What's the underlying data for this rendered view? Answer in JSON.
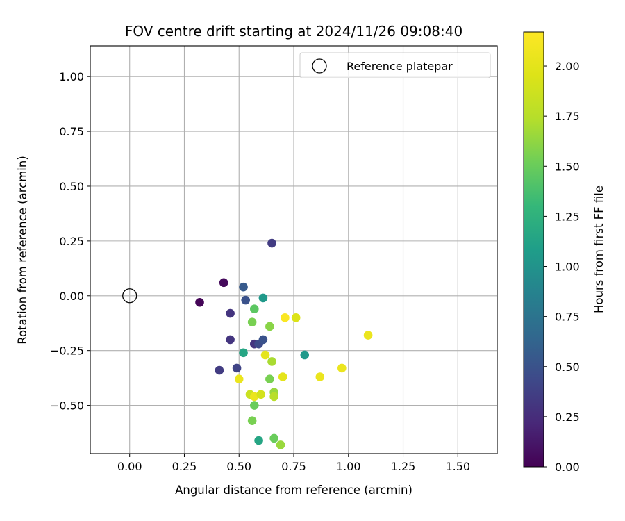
{
  "chart_data": {
    "type": "scatter",
    "title": "FOV centre drift starting at 2024/11/26 09:08:40",
    "xlabel": "Angular distance from reference (arcmin)",
    "ylabel": "Rotation from reference (arcmin)",
    "xlim": [
      -0.18,
      1.68
    ],
    "ylim": [
      -0.72,
      1.14
    ],
    "xticks": [
      0.0,
      0.25,
      0.5,
      0.75,
      1.0,
      1.25,
      1.5
    ],
    "xtick_labels": [
      "0.00",
      "0.25",
      "0.50",
      "0.75",
      "1.00",
      "1.25",
      "1.50"
    ],
    "yticks": [
      -0.5,
      -0.25,
      0.0,
      0.25,
      0.5,
      0.75,
      1.0
    ],
    "ytick_labels": [
      "−0.50",
      "−0.25",
      "0.00",
      "0.25",
      "0.50",
      "0.75",
      "1.00"
    ],
    "grid": true,
    "legend": {
      "position": "top-right",
      "entries": [
        "Reference platepar"
      ]
    },
    "reference_point": {
      "x": 0.0,
      "y": 0.0,
      "label": "Reference platepar"
    },
    "colorbar": {
      "label": "Hours from first FF file",
      "range": [
        0.0,
        2.17
      ],
      "ticks": [
        0.0,
        0.25,
        0.5,
        0.75,
        1.0,
        1.25,
        1.5,
        1.75,
        2.0
      ],
      "tick_labels": [
        "0.00",
        "0.25",
        "0.50",
        "0.75",
        "1.00",
        "1.25",
        "1.50",
        "1.75",
        "2.00"
      ],
      "colormap": "viridis"
    },
    "points": [
      {
        "x": 0.32,
        "y": -0.03,
        "hours": 0.02
      },
      {
        "x": 0.43,
        "y": 0.06,
        "hours": 0.05
      },
      {
        "x": 0.65,
        "y": 0.24,
        "hours": 0.35
      },
      {
        "x": 0.52,
        "y": 0.04,
        "hours": 0.55
      },
      {
        "x": 0.53,
        "y": -0.02,
        "hours": 0.5
      },
      {
        "x": 0.46,
        "y": -0.08,
        "hours": 0.3
      },
      {
        "x": 0.46,
        "y": -0.2,
        "hours": 0.3
      },
      {
        "x": 0.41,
        "y": -0.34,
        "hours": 0.35
      },
      {
        "x": 0.49,
        "y": -0.33,
        "hours": 0.4
      },
      {
        "x": 0.57,
        "y": -0.22,
        "hours": 0.3
      },
      {
        "x": 0.59,
        "y": -0.22,
        "hours": 0.45
      },
      {
        "x": 0.61,
        "y": -0.2,
        "hours": 0.5
      },
      {
        "x": 0.61,
        "y": -0.01,
        "hours": 1.05
      },
      {
        "x": 0.57,
        "y": -0.06,
        "hours": 1.45
      },
      {
        "x": 0.56,
        "y": -0.12,
        "hours": 1.55
      },
      {
        "x": 0.64,
        "y": -0.14,
        "hours": 1.6
      },
      {
        "x": 0.52,
        "y": -0.26,
        "hours": 1.15
      },
      {
        "x": 0.8,
        "y": -0.27,
        "hours": 1.05
      },
      {
        "x": 0.71,
        "y": -0.1,
        "hours": 2.15
      },
      {
        "x": 0.76,
        "y": -0.1,
        "hours": 1.95
      },
      {
        "x": 1.09,
        "y": -0.18,
        "hours": 2.05
      },
      {
        "x": 0.62,
        "y": -0.27,
        "hours": 2.0
      },
      {
        "x": 0.65,
        "y": -0.3,
        "hours": 1.7
      },
      {
        "x": 0.64,
        "y": -0.38,
        "hours": 1.55
      },
      {
        "x": 0.5,
        "y": -0.38,
        "hours": 2.05
      },
      {
        "x": 0.7,
        "y": -0.37,
        "hours": 2.0
      },
      {
        "x": 0.87,
        "y": -0.37,
        "hours": 2.05
      },
      {
        "x": 0.97,
        "y": -0.33,
        "hours": 2.05
      },
      {
        "x": 0.55,
        "y": -0.45,
        "hours": 1.85
      },
      {
        "x": 0.57,
        "y": -0.46,
        "hours": 2.05
      },
      {
        "x": 0.6,
        "y": -0.45,
        "hours": 1.9
      },
      {
        "x": 0.66,
        "y": -0.44,
        "hours": 1.65
      },
      {
        "x": 0.66,
        "y": -0.46,
        "hours": 1.75
      },
      {
        "x": 0.57,
        "y": -0.5,
        "hours": 1.5
      },
      {
        "x": 0.56,
        "y": -0.57,
        "hours": 1.55
      },
      {
        "x": 0.59,
        "y": -0.66,
        "hours": 1.15
      },
      {
        "x": 0.66,
        "y": -0.65,
        "hours": 1.5
      },
      {
        "x": 0.69,
        "y": -0.68,
        "hours": 1.65
      }
    ]
  }
}
